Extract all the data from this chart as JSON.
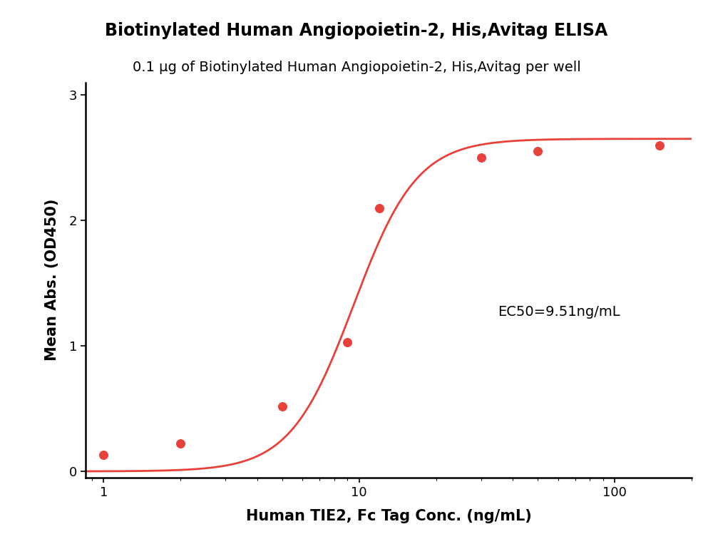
{
  "title_line1": "Biotinylated Human Angiopoietin-2, His,Avitag ELISA",
  "title_line2": "0.1 μg of Biotinylated Human Angiopoietin-2, His,Avitag per well",
  "xlabel": "Human TIE2, Fc Tag Conc. (ng/mL)",
  "ylabel": "Mean Abs. (OD450)",
  "ec50_text": "EC50=9.51ng/mL",
  "ec50_value": 9.51,
  "data_x": [
    1.0,
    2.0,
    5.0,
    9.0,
    12.0,
    30.0,
    50.0,
    150.0
  ],
  "data_y": [
    0.13,
    0.22,
    0.52,
    1.03,
    2.1,
    2.5,
    2.55,
    2.6
  ],
  "xlim_log": [
    0.85,
    200
  ],
  "ylim": [
    -0.05,
    3.1
  ],
  "yticks": [
    0,
    1,
    2,
    3
  ],
  "curve_color": "#E8413C",
  "dot_color": "#E8413C",
  "dot_size": 70,
  "line_width": 2.0,
  "background_color": "#FFFFFF",
  "title_fontsize": 17,
  "subtitle_fontsize": 14,
  "axis_label_fontsize": 15,
  "tick_fontsize": 13,
  "ec50_fontsize": 14,
  "fig_width": 10.0,
  "fig_height": 7.7
}
